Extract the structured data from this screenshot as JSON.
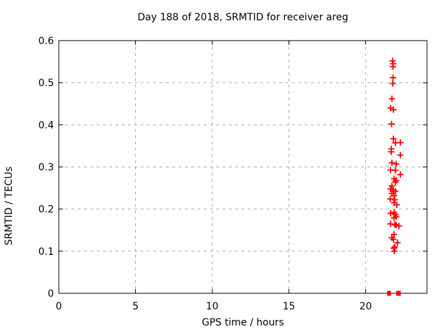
{
  "chart_data": {
    "type": "scatter",
    "title": "Day 188 of 2018, SRMTID for receiver areg",
    "xlabel": "GPS time / hours",
    "ylabel": "SRMTID / TECUs",
    "xlim": [
      0,
      24
    ],
    "ylim": [
      0,
      0.6
    ],
    "xticks": {
      "values": [
        0,
        5,
        10,
        15,
        20
      ],
      "labels": [
        "0",
        "5",
        "10",
        "15",
        "20"
      ]
    },
    "yticks": {
      "values": [
        0,
        0.1,
        0.2,
        0.3,
        0.4,
        0.5,
        0.6
      ],
      "labels": [
        "0",
        "0.1",
        "0.2",
        "0.3",
        "0.4",
        "0.5",
        "0.6"
      ]
    },
    "grid": "dashed",
    "legend": "none",
    "marker": "plus",
    "marker_color": "#ff0000",
    "grid_color": "#a6a6a6",
    "axis_color": "#000000",
    "background": "#ffffff",
    "points": [
      [
        21.76,
        0.552
      ],
      [
        21.8,
        0.545
      ],
      [
        21.78,
        0.538
      ],
      [
        21.79,
        0.512
      ],
      [
        21.77,
        0.498
      ],
      [
        21.71,
        0.462
      ],
      [
        21.62,
        0.44
      ],
      [
        21.81,
        0.436
      ],
      [
        21.69,
        0.402
      ],
      [
        21.81,
        0.367
      ],
      [
        22.26,
        0.358
      ],
      [
        21.94,
        0.357
      ],
      [
        21.67,
        0.343
      ],
      [
        21.67,
        0.336
      ],
      [
        22.26,
        0.328
      ],
      [
        21.71,
        0.31
      ],
      [
        21.99,
        0.307
      ],
      [
        21.62,
        0.293
      ],
      [
        21.94,
        0.292
      ],
      [
        22.26,
        0.282
      ],
      [
        21.85,
        0.272
      ],
      [
        21.99,
        0.268
      ],
      [
        21.94,
        0.264
      ],
      [
        21.71,
        0.255
      ],
      [
        21.62,
        0.248
      ],
      [
        21.81,
        0.245
      ],
      [
        21.94,
        0.242
      ],
      [
        21.71,
        0.237
      ],
      [
        21.85,
        0.232
      ],
      [
        21.6,
        0.224
      ],
      [
        21.9,
        0.222
      ],
      [
        21.85,
        0.215
      ],
      [
        22.03,
        0.21
      ],
      [
        21.85,
        0.192
      ],
      [
        21.62,
        0.19
      ],
      [
        21.94,
        0.187
      ],
      [
        21.99,
        0.182
      ],
      [
        21.85,
        0.179
      ],
      [
        21.62,
        0.165
      ],
      [
        21.9,
        0.163
      ],
      [
        21.99,
        0.162
      ],
      [
        22.17,
        0.16
      ],
      [
        21.85,
        0.14
      ],
      [
        21.71,
        0.132
      ],
      [
        21.81,
        0.128
      ],
      [
        22.08,
        0.12
      ],
      [
        21.9,
        0.11
      ],
      [
        21.83,
        0.107
      ],
      [
        21.87,
        0.1
      ]
    ],
    "zero_value_runs": [
      {
        "x_start": 21.4,
        "x_end": 21.65,
        "y": 0
      },
      {
        "x_start": 21.99,
        "x_end": 22.29,
        "y": 0
      }
    ]
  }
}
